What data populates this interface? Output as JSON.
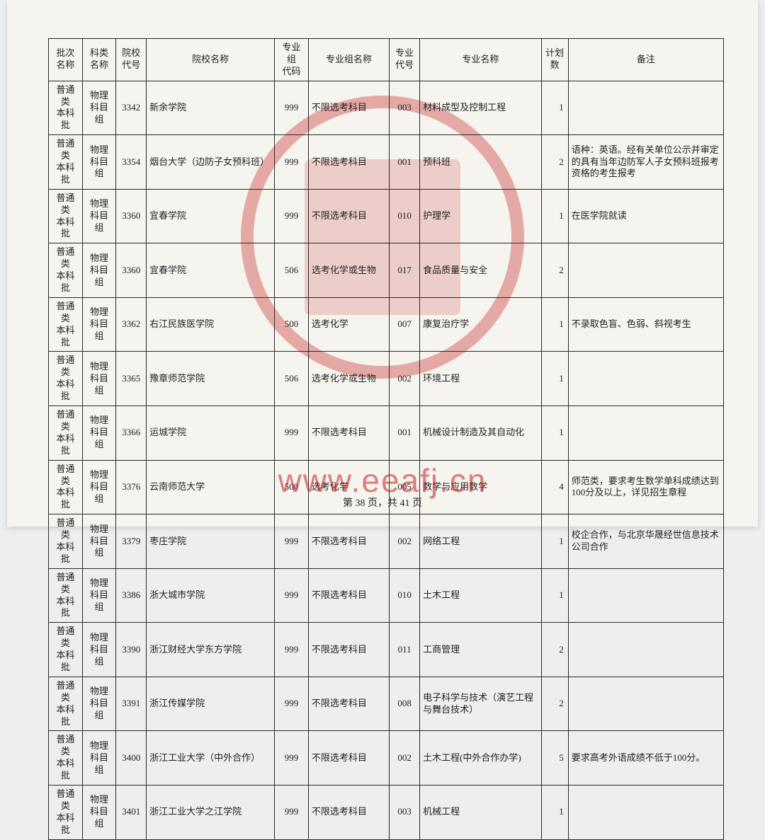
{
  "columns": [
    {
      "label": "批次\n名称",
      "width": "5%"
    },
    {
      "label": "科类\n名称",
      "width": "5%"
    },
    {
      "label": "院校\n代号",
      "width": "4.5%"
    },
    {
      "label": "院校名称",
      "width": "19%"
    },
    {
      "label": "专业组\n代码",
      "width": "5%"
    },
    {
      "label": "专业组名称",
      "width": "12%"
    },
    {
      "label": "专业\n代号",
      "width": "4.5%"
    },
    {
      "label": "专业名称",
      "width": "18%"
    },
    {
      "label": "计划\n数",
      "width": "4%"
    },
    {
      "label": "备注",
      "width": "23%"
    }
  ],
  "rows": [
    [
      "普通类\n本科批",
      "物理\n科目组",
      "3342",
      "新余学院",
      "999",
      "不限选考科目",
      "003",
      "材料成型及控制工程",
      "1",
      ""
    ],
    [
      "普通类\n本科批",
      "物理\n科目组",
      "3354",
      "烟台大学（边防子女预科班）",
      "999",
      "不限选考科目",
      "001",
      "预科班",
      "2",
      "语种：英语。经有关单位公示并审定的具有当年边防军人子女预科班报考资格的考生报考"
    ],
    [
      "普通类\n本科批",
      "物理\n科目组",
      "3360",
      "宜春学院",
      "999",
      "不限选考科目",
      "010",
      "护理学",
      "1",
      "在医学院就读"
    ],
    [
      "普通类\n本科批",
      "物理\n科目组",
      "3360",
      "宜春学院",
      "506",
      "选考化学或生物",
      "017",
      "食品质量与安全",
      "2",
      ""
    ],
    [
      "普通类\n本科批",
      "物理\n科目组",
      "3362",
      "右江民族医学院",
      "500",
      "选考化学",
      "007",
      "康复治疗学",
      "1",
      "不录取色盲、色弱、斜视考生"
    ],
    [
      "普通类\n本科批",
      "物理\n科目组",
      "3365",
      "豫章师范学院",
      "506",
      "选考化学或生物",
      "002",
      "环境工程",
      "1",
      ""
    ],
    [
      "普通类\n本科批",
      "物理\n科目组",
      "3366",
      "运城学院",
      "999",
      "不限选考科目",
      "001",
      "机械设计制造及其自动化",
      "1",
      ""
    ],
    [
      "普通类\n本科批",
      "物理\n科目组",
      "3376",
      "云南师范大学",
      "500",
      "选考化学",
      "005",
      "数学与应用数学",
      "4",
      "师范类，要求考生数学单科成绩达到100分及以上，详见招生章程"
    ],
    [
      "普通类\n本科批",
      "物理\n科目组",
      "3379",
      "枣庄学院",
      "999",
      "不限选考科目",
      "002",
      "网络工程",
      "1",
      "校企合作，与北京华晟经世信息技术公司合作"
    ],
    [
      "普通类\n本科批",
      "物理\n科目组",
      "3386",
      "浙大城市学院",
      "999",
      "不限选考科目",
      "010",
      "土木工程",
      "1",
      ""
    ],
    [
      "普通类\n本科批",
      "物理\n科目组",
      "3390",
      "浙江财经大学东方学院",
      "999",
      "不限选考科目",
      "011",
      "工商管理",
      "2",
      ""
    ],
    [
      "普通类\n本科批",
      "物理\n科目组",
      "3391",
      "浙江传媒学院",
      "999",
      "不限选考科目",
      "008",
      "电子科学与技术（演艺工程与舞台技术）",
      "2",
      ""
    ],
    [
      "普通类\n本科批",
      "物理\n科目组",
      "3400",
      "浙江工业大学（中外合作）",
      "999",
      "不限选考科目",
      "002",
      "土木工程(中外合作办学)",
      "5",
      "要求高考外语成绩不低于100分。"
    ],
    [
      "普通类\n本科批",
      "物理\n科目组",
      "3401",
      "浙江工业大学之江学院",
      "999",
      "不限选考科目",
      "003",
      "机械工程",
      "1",
      ""
    ]
  ],
  "page_footer": "第 38 页，共 41 页",
  "watermark": "www.eeafj.cn",
  "colors": {
    "border": "#2a2a2a",
    "seal": "rgba(200,30,30,0.35)",
    "paper_bg": "#f5f4ef",
    "body_bg": "#eceef0"
  },
  "align": [
    "center",
    "center",
    "center",
    "left",
    "center",
    "left",
    "center",
    "left",
    "right",
    "left"
  ]
}
